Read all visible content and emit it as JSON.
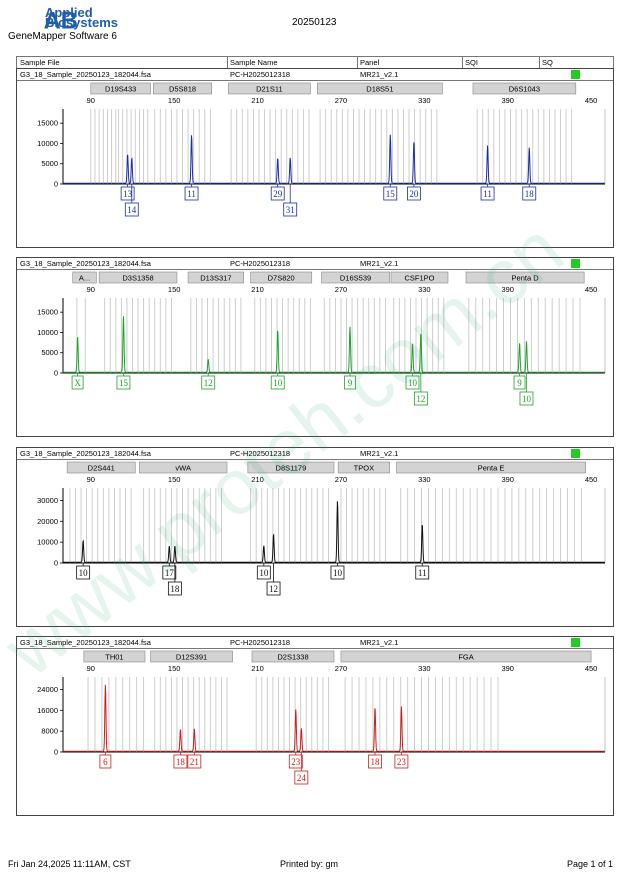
{
  "header": {
    "logo_mark": "AB",
    "brand_line1": "Applied",
    "brand_line2": "Biosystems",
    "software": "GeneMapper Software 6",
    "run_date": "20250123"
  },
  "columns": {
    "sample_file": "Sample File",
    "sample_name": "Sample Name",
    "panel": "Panel",
    "sqi": "SQI",
    "sq": "SQ"
  },
  "colors": {
    "blue": "#1c2fa0",
    "green": "#1fa32b",
    "black": "#111111",
    "red": "#cc1f1f",
    "status_green": "#22cc22",
    "locus_box": "#d3d3d3",
    "bin": "#c8c8c8"
  },
  "footer": {
    "timestamp": "Fri Jan 24,2025 11:11AM, CST",
    "printed_by": "Printed by: gm",
    "page": "Page 1 of 1"
  },
  "watermark": "www.proteh.com.cn",
  "chart_data": [
    {
      "type": "line",
      "dye": "blue",
      "sample_file": "G3_18_Sample_20250123_182044.fsa",
      "sample_name": "PC-H2025012318",
      "panel": "MR21_v2.1",
      "x_ticks": [
        "90",
        "150",
        "210",
        "270",
        "330",
        "390",
        "450"
      ],
      "y_ticks": [
        "0",
        "5000",
        "10000",
        "15000"
      ],
      "xlim": [
        70,
        460
      ],
      "ylim": [
        0,
        18000
      ],
      "loci": [
        {
          "name": "D19S433",
          "start": 90,
          "end": 133
        },
        {
          "name": "D5S818",
          "start": 135,
          "end": 177
        },
        {
          "name": "D21S11",
          "start": 189,
          "end": 248
        },
        {
          "name": "D18S51",
          "start": 253,
          "end": 343
        },
        {
          "name": "D6S1043",
          "start": 365,
          "end": 439
        }
      ],
      "bins": [
        90,
        93,
        96,
        99,
        102,
        105,
        108,
        110,
        113,
        116,
        119,
        122,
        125,
        128,
        131,
        136,
        140,
        144,
        148,
        152,
        156,
        160,
        164,
        168,
        172,
        176,
        191,
        195,
        199,
        203,
        207,
        211,
        215,
        219,
        223,
        227,
        231,
        235,
        239,
        243,
        247,
        255,
        259,
        263,
        267,
        271,
        275,
        279,
        283,
        287,
        291,
        295,
        299,
        303,
        307,
        311,
        315,
        319,
        323,
        327,
        331,
        335,
        339,
        368,
        372,
        376,
        380,
        384,
        388,
        392,
        396,
        400,
        404,
        408,
        412,
        416,
        420,
        424,
        428,
        432,
        436
      ],
      "peaks": [
        {
          "x": 116.5,
          "y": 7200
        },
        {
          "x": 119.5,
          "y": 6300
        },
        {
          "x": 162.5,
          "y": 12000
        },
        {
          "x": 224.5,
          "y": 6200
        },
        {
          "x": 233.5,
          "y": 6300
        },
        {
          "x": 305.5,
          "y": 12000
        },
        {
          "x": 322.5,
          "y": 10400
        },
        {
          "x": 375.5,
          "y": 9300
        },
        {
          "x": 405.5,
          "y": 8800
        }
      ],
      "alleles": [
        {
          "label": "13",
          "x": 116.5,
          "row": 1
        },
        {
          "label": "14",
          "x": 119.5,
          "row": 2
        },
        {
          "label": "11",
          "x": 162.5,
          "row": 1
        },
        {
          "label": "29",
          "x": 224.5,
          "row": 1
        },
        {
          "label": "31",
          "x": 233.5,
          "row": 2
        },
        {
          "label": "15",
          "x": 305.5,
          "row": 1
        },
        {
          "label": "20",
          "x": 322.5,
          "row": 1
        },
        {
          "label": "11",
          "x": 375.5,
          "row": 1
        },
        {
          "label": "18",
          "x": 405.5,
          "row": 1
        }
      ]
    },
    {
      "type": "line",
      "dye": "green",
      "sample_file": "G3_18_Sample_20250123_182044.fsa",
      "sample_name": "PC-H2025012318",
      "panel": "MR21_v2.1",
      "x_ticks": [
        "90",
        "150",
        "210",
        "270",
        "330",
        "390",
        "450"
      ],
      "y_ticks": [
        "0",
        "5000",
        "10000",
        "15000"
      ],
      "xlim": [
        70,
        460
      ],
      "ylim": [
        0,
        18000
      ],
      "loci": [
        {
          "name": "A...",
          "start": 77,
          "end": 94
        },
        {
          "name": "D3S1358",
          "start": 96,
          "end": 152
        },
        {
          "name": "D13S317",
          "start": 160,
          "end": 200
        },
        {
          "name": "D7S820",
          "start": 205,
          "end": 249
        },
        {
          "name": "D16S539",
          "start": 256,
          "end": 305
        },
        {
          "name": "CSF1PO",
          "start": 306,
          "end": 347
        },
        {
          "name": "Penta D",
          "start": 360,
          "end": 445
        }
      ],
      "bins": [
        80,
        86,
        100,
        104,
        108,
        112,
        116,
        120,
        124,
        128,
        132,
        136,
        140,
        144,
        148,
        162,
        166,
        170,
        174,
        178,
        182,
        186,
        190,
        194,
        198,
        208,
        212,
        216,
        220,
        224,
        228,
        232,
        236,
        240,
        244,
        248,
        258,
        262,
        266,
        270,
        274,
        278,
        282,
        286,
        290,
        294,
        298,
        302,
        308,
        312,
        316,
        320,
        324,
        328,
        332,
        336,
        340,
        344,
        362,
        367,
        372,
        377,
        382,
        387,
        392,
        397,
        402,
        407,
        412,
        417,
        422,
        427,
        432,
        437,
        442
      ],
      "peaks": [
        {
          "x": 80.5,
          "y": 8800
        },
        {
          "x": 113.5,
          "y": 14000
        },
        {
          "x": 174.5,
          "y": 3200
        },
        {
          "x": 224.5,
          "y": 10500
        },
        {
          "x": 276.5,
          "y": 11200
        },
        {
          "x": 321.5,
          "y": 7200
        },
        {
          "x": 327.5,
          "y": 9800
        },
        {
          "x": 398.5,
          "y": 7300
        },
        {
          "x": 403.5,
          "y": 7700
        }
      ],
      "alleles": [
        {
          "label": "X",
          "x": 80.5,
          "row": 1
        },
        {
          "label": "15",
          "x": 113.5,
          "row": 1
        },
        {
          "label": "12",
          "x": 174.5,
          "row": 1
        },
        {
          "label": "10",
          "x": 224.5,
          "row": 1
        },
        {
          "label": "9",
          "x": 276.5,
          "row": 1
        },
        {
          "label": "10",
          "x": 321.5,
          "row": 1
        },
        {
          "label": "12",
          "x": 327.5,
          "row": 2
        },
        {
          "label": "9",
          "x": 398.5,
          "row": 1
        },
        {
          "label": "10",
          "x": 403.5,
          "row": 2
        }
      ]
    },
    {
      "type": "line",
      "dye": "black",
      "sample_file": "G3_18_Sample_20250123_182044.fsa",
      "sample_name": "PC-H2025012318",
      "panel": "MR21_v2.1",
      "x_ticks": [
        "90",
        "150",
        "210",
        "270",
        "330",
        "390",
        "450"
      ],
      "y_ticks": [
        "0",
        "10000",
        "20000",
        "30000"
      ],
      "xlim": [
        70,
        460
      ],
      "ylim": [
        0,
        35000
      ],
      "loci": [
        {
          "name": "D2S441",
          "start": 73,
          "end": 122
        },
        {
          "name": "vWA",
          "start": 125,
          "end": 188
        },
        {
          "name": "D8S1179",
          "start": 203,
          "end": 265
        },
        {
          "name": "TPOX",
          "start": 268,
          "end": 305
        },
        {
          "name": "Penta E",
          "start": 310,
          "end": 446
        }
      ],
      "bins": [
        75,
        79,
        83,
        87,
        91,
        95,
        99,
        103,
        107,
        111,
        115,
        119,
        128,
        132,
        136,
        140,
        144,
        148,
        152,
        156,
        160,
        164,
        168,
        172,
        176,
        180,
        184,
        205,
        209,
        213,
        217,
        221,
        225,
        229,
        233,
        237,
        241,
        245,
        249,
        253,
        257,
        261,
        270,
        274,
        278,
        282,
        286,
        290,
        294,
        298,
        302,
        313,
        318,
        323,
        328,
        333,
        338,
        343,
        348,
        353,
        358,
        363,
        368,
        373,
        378,
        383,
        388,
        393,
        398,
        403,
        408,
        413,
        418,
        423,
        428,
        433,
        438,
        443
      ],
      "peaks": [
        {
          "x": 84.5,
          "y": 10500
        },
        {
          "x": 146.5,
          "y": 7800
        },
        {
          "x": 150.5,
          "y": 7900
        },
        {
          "x": 214.5,
          "y": 8000
        },
        {
          "x": 221.5,
          "y": 13500
        },
        {
          "x": 267.5,
          "y": 29500
        },
        {
          "x": 328.5,
          "y": 18500
        }
      ],
      "alleles": [
        {
          "label": "10",
          "x": 84.5,
          "row": 1
        },
        {
          "label": "17",
          "x": 146.5,
          "row": 1
        },
        {
          "label": "18",
          "x": 150.5,
          "row": 2
        },
        {
          "label": "10",
          "x": 214.5,
          "row": 1
        },
        {
          "label": "12",
          "x": 221.5,
          "row": 2
        },
        {
          "label": "10",
          "x": 267.5,
          "row": 1
        },
        {
          "label": "11",
          "x": 328.5,
          "row": 1
        }
      ]
    },
    {
      "type": "line",
      "dye": "red",
      "sample_file": "G3_18_Sample_20250123_182044.fsa",
      "sample_name": "PC-H2025012318",
      "panel": "MR21_v2.1",
      "x_ticks": [
        "90",
        "150",
        "210",
        "270",
        "330",
        "390",
        "450"
      ],
      "y_ticks": [
        "0",
        "8000",
        "16000",
        "24000"
      ],
      "xlim": [
        70,
        460
      ],
      "ylim": [
        0,
        28000
      ],
      "loci": [
        {
          "name": "TH01",
          "start": 85,
          "end": 129
        },
        {
          "name": "D12S391",
          "start": 133,
          "end": 192
        },
        {
          "name": "D2S1338",
          "start": 206,
          "end": 265
        },
        {
          "name": "FGA",
          "start": 270,
          "end": 450
        }
      ],
      "bins": [
        88,
        93,
        98,
        103,
        108,
        113,
        118,
        123,
        128,
        136,
        140,
        144,
        148,
        152,
        156,
        160,
        164,
        168,
        172,
        176,
        180,
        184,
        188,
        209,
        213,
        217,
        221,
        225,
        229,
        233,
        237,
        241,
        245,
        249,
        253,
        257,
        261,
        273,
        278,
        283,
        288,
        293,
        298,
        303,
        308,
        313,
        318,
        323,
        328,
        333,
        338,
        343,
        348,
        353,
        358,
        363,
        368,
        373,
        378,
        383
      ],
      "peaks": [
        {
          "x": 100.5,
          "y": 25500
        },
        {
          "x": 154.5,
          "y": 8500
        },
        {
          "x": 164.5,
          "y": 8700
        },
        {
          "x": 237.5,
          "y": 16000
        },
        {
          "x": 241.5,
          "y": 8800
        },
        {
          "x": 294.5,
          "y": 17000
        },
        {
          "x": 313.5,
          "y": 17200
        }
      ],
      "alleles": [
        {
          "label": "6",
          "x": 100.5,
          "row": 1
        },
        {
          "label": "18",
          "x": 154.5,
          "row": 1
        },
        {
          "label": "21",
          "x": 164.5,
          "row": 1
        },
        {
          "label": "23",
          "x": 237.5,
          "row": 1
        },
        {
          "label": "24",
          "x": 241.5,
          "row": 2
        },
        {
          "label": "18",
          "x": 294.5,
          "row": 1
        },
        {
          "label": "23",
          "x": 313.5,
          "row": 1
        }
      ]
    }
  ]
}
